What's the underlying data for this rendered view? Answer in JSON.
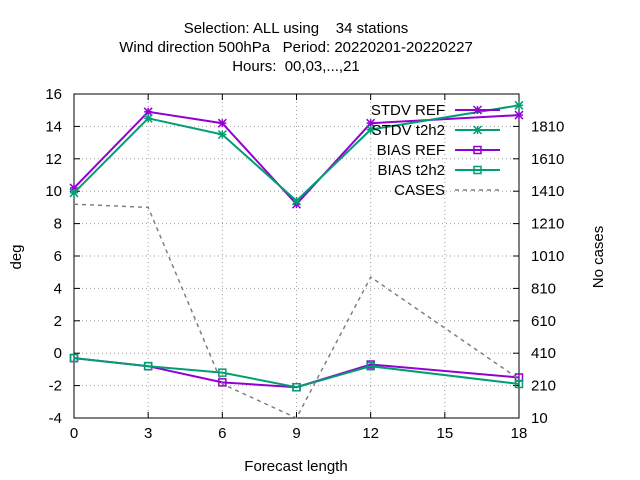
{
  "chart_data": {
    "type": "line",
    "title_lines": [
      "Selection: ALL using    34 stations",
      "Wind direction 500hPa   Period: 20220201-20220227",
      "Hours:  00,03,...,21"
    ],
    "xlabel": "Forecast length",
    "ylabel": "deg",
    "y2label": "No cases",
    "xlim": [
      0,
      18
    ],
    "ylim": [
      -4,
      16
    ],
    "y2lim": [
      10,
      2010
    ],
    "xticks": [
      0,
      3,
      6,
      9,
      12,
      15,
      18
    ],
    "yticks": [
      -4,
      -2,
      0,
      2,
      4,
      6,
      8,
      10,
      12,
      14,
      16
    ],
    "y2ticks": [
      10,
      210,
      410,
      610,
      810,
      1010,
      1210,
      1410,
      1610,
      1810
    ],
    "grid": true,
    "legend_position": "top-right",
    "series": [
      {
        "name": "STDV REF",
        "axis": "y",
        "color": "#9400d3",
        "marker": "star",
        "x": [
          0,
          3,
          6,
          9,
          12,
          18
        ],
        "values": [
          10.2,
          14.9,
          14.2,
          9.2,
          14.2,
          14.7
        ]
      },
      {
        "name": "STDV t2h2",
        "axis": "y",
        "color": "#009e73",
        "marker": "star",
        "x": [
          0,
          3,
          6,
          9,
          12,
          18
        ],
        "values": [
          9.9,
          14.5,
          13.5,
          9.4,
          13.8,
          15.3
        ]
      },
      {
        "name": "BIAS REF",
        "axis": "y",
        "color": "#9400d3",
        "marker": "square",
        "x": [
          0,
          3,
          6,
          9,
          12,
          18
        ],
        "values": [
          -0.3,
          -0.8,
          -1.8,
          -2.1,
          -0.7,
          -1.5
        ]
      },
      {
        "name": "BIAS t2h2",
        "axis": "y",
        "color": "#009e73",
        "marker": "square",
        "x": [
          0,
          3,
          6,
          9,
          12,
          18
        ],
        "values": [
          -0.3,
          -0.8,
          -1.2,
          -2.1,
          -0.8,
          -1.9
        ]
      },
      {
        "name": "CASES",
        "axis": "y2",
        "color": "#808080",
        "dash": true,
        "marker": "none",
        "x": [
          0,
          3,
          6,
          9,
          12,
          18
        ],
        "values": [
          1330,
          1310,
          220,
          10,
          880,
          250
        ]
      }
    ]
  }
}
